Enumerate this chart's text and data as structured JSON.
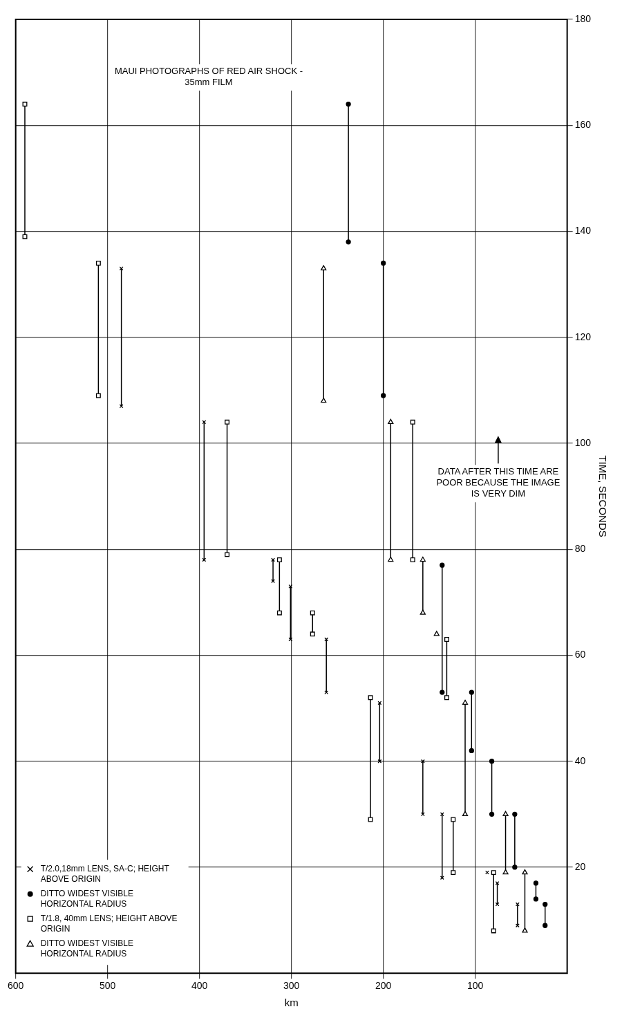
{
  "chart_data": {
    "type": "line",
    "xlabel": "km",
    "ylabel": "TIME, SECONDS",
    "xlim": [
      600,
      0
    ],
    "xticks": [
      600,
      500,
      400,
      300,
      200,
      100
    ],
    "ylim": [
      0,
      180
    ],
    "yticks": [
      20,
      40,
      60,
      80,
      100,
      120,
      140,
      160,
      180
    ],
    "grid": true,
    "legend": "bottom left",
    "annotations": [
      "MAUI PHOTOGRAPHS OF RED AIR SHOCK - 35mm FILM",
      "DATA AFTER THIS TIME ARE POOR BECAUSE THE IMAGE IS VERY DIM"
    ],
    "series": [
      {
        "name": "T/2.0,18mm LENS, SA-C; HEIGHT ABOVE ORIGIN",
        "color": "#000000",
        "marker": "cross",
        "x": [
          485,
          485,
          null,
          395,
          395,
          null,
          320,
          320,
          null,
          301,
          301,
          null,
          262,
          262,
          null,
          204,
          204,
          null,
          157,
          157,
          null,
          136,
          136,
          null,
          76,
          76,
          null,
          54,
          54,
          null,
          87
        ],
        "values": [
          107,
          133,
          null,
          78,
          104,
          null,
          74,
          78,
          null,
          63,
          73,
          null,
          53,
          63,
          null,
          40,
          51,
          null,
          30,
          40,
          null,
          18,
          30,
          null,
          13,
          17,
          null,
          9,
          13,
          null,
          19
        ]
      },
      {
        "name": "DITTO WIDEST VISIBLE HORIZONTAL RADIUS",
        "color": "#000000",
        "marker": "circle",
        "x": [
          238,
          238,
          null,
          200,
          200,
          null,
          136,
          136,
          null,
          104,
          104,
          null,
          82,
          82,
          null,
          57,
          57,
          null,
          34,
          34,
          null,
          24,
          24
        ],
        "values": [
          138,
          164,
          null,
          109,
          134,
          null,
          53,
          77,
          null,
          42,
          53,
          null,
          30,
          40,
          null,
          20,
          30,
          null,
          14,
          17,
          null,
          9,
          13
        ]
      },
      {
        "name": "T/1.8, 40mm LENS; HEIGHT ABOVE ORIGIN",
        "color": "#000000",
        "marker": "square",
        "x": [
          590,
          590,
          null,
          510,
          510,
          null,
          370,
          370,
          null,
          168,
          168,
          null,
          313,
          313,
          null,
          277,
          277,
          null,
          214,
          214,
          null,
          131,
          131,
          null,
          124,
          124,
          null,
          80,
          80
        ],
        "values": [
          139,
          164,
          null,
          109,
          134,
          null,
          79,
          104,
          null,
          78,
          104,
          null,
          68,
          78,
          null,
          64,
          68,
          null,
          29,
          52,
          null,
          52,
          63,
          null,
          19,
          29,
          null,
          8,
          19
        ]
      },
      {
        "name": "DITTO WIDEST VISIBLE HORIZONTAL RADIUS",
        "color": "#000000",
        "marker": "triangle",
        "x": [
          265,
          265,
          null,
          192,
          192,
          null,
          157,
          157,
          null,
          142,
          null,
          111,
          111,
          null,
          67,
          67,
          null,
          46,
          46
        ],
        "values": [
          108,
          133,
          null,
          78,
          104,
          null,
          68,
          78,
          null,
          64,
          null,
          30,
          51,
          null,
          19,
          30,
          null,
          8,
          19
        ]
      }
    ]
  }
}
